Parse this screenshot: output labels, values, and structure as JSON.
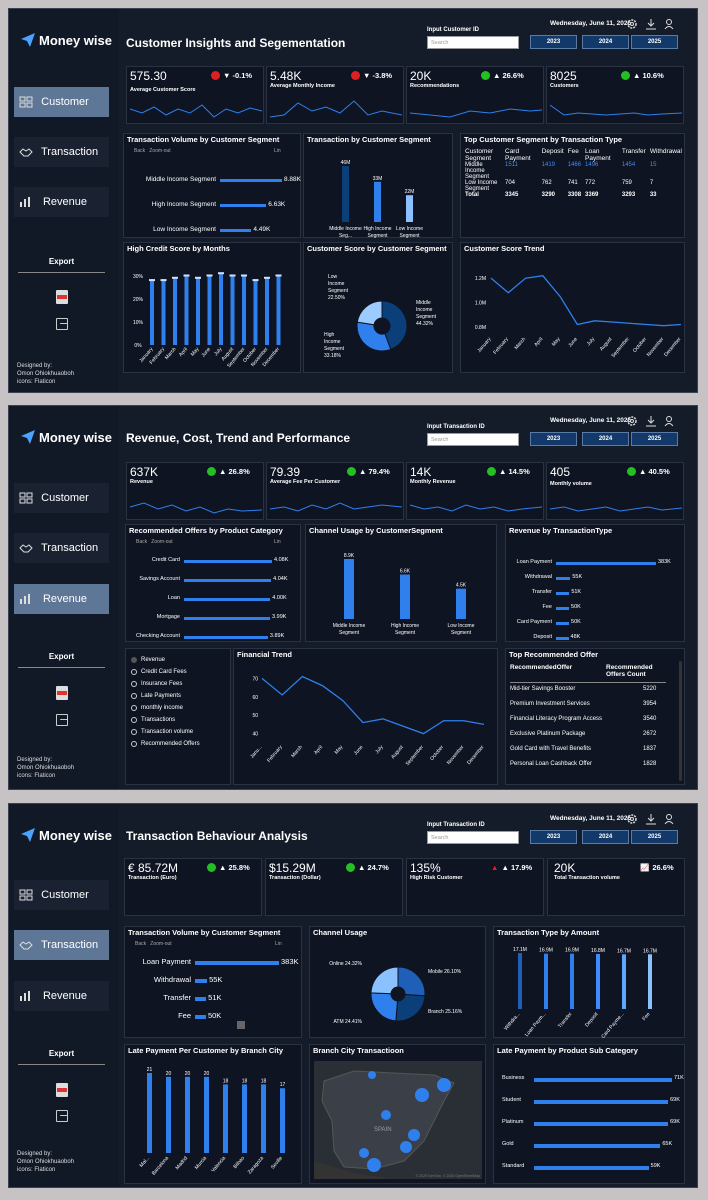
{
  "brand": "Money wise",
  "nav": {
    "customer": "Customer",
    "transaction": "Transaction",
    "revenue": "Revenue"
  },
  "export": "Export",
  "credit": {
    "l1": "Designed by:",
    "l2": "Omon Ohiokhuaoboh",
    "l3": "icons: Flaticon"
  },
  "date": "Wednesday, June 11, 2025",
  "years": [
    "2023",
    "2024",
    "2025"
  ],
  "search_placeholder": "Search",
  "d1": {
    "title": "Customer Insights and Segementation",
    "input_label": "Input Customer ID",
    "kpis": [
      {
        "value": "575.30",
        "label": "Average Customer Score",
        "delta": "▼ -0.1%",
        "status": "#e02020"
      },
      {
        "value": "5.48K",
        "label": "Average Monthly Income",
        "delta": "▼ -3.8%",
        "status": "#e02020"
      },
      {
        "value": "20K",
        "label": "Recommendations",
        "delta": "▲ 26.6%",
        "status": "#22c022"
      },
      {
        "value": "8025",
        "label": "Customers",
        "delta": "▲ 10.6%",
        "status": "#22c022"
      }
    ],
    "tv": {
      "title": "Transaction Volume by Customer Segment",
      "back": "Back",
      "zoom": "Zoom-out",
      "lin": "Lin",
      "rows": [
        {
          "label": "Middle Income Segment",
          "value": "8.88K",
          "v": 8.88
        },
        {
          "label": "High Income Segment",
          "value": "6.63K",
          "v": 6.63
        },
        {
          "label": "Low Income Segment",
          "value": "4.49K",
          "v": 4.49
        }
      ]
    },
    "tbs": {
      "title": "Transaction by Customer Segment",
      "bars": [
        {
          "label": "Middle Income Seg...",
          "value": "46M",
          "v": 46
        },
        {
          "label": "High Income Segment",
          "value": "33M",
          "v": 33
        },
        {
          "label": "Low Income Segment",
          "value": "22M",
          "v": 22
        }
      ]
    },
    "top": {
      "title": "Top Customer Segment by Transaction Type",
      "headers": [
        "Customer Segment",
        "Card Payment",
        "Deposit",
        "Fee",
        "Loan Payment",
        "Transfer",
        "Withdrawal"
      ],
      "rows": [
        [
          "Middle Income Segment",
          "1511",
          "1419",
          "1466",
          "1496",
          "1454",
          "15"
        ],
        [
          "Low Income Segment",
          "704",
          "762",
          "741",
          "772",
          "759",
          "7"
        ],
        [
          "Total",
          "3345",
          "3290",
          "3308",
          "3369",
          "3293",
          "33"
        ]
      ]
    },
    "credit": {
      "title": "High Credit Score by Months",
      "yticks": [
        "30%",
        "20%",
        "10%",
        "0%"
      ],
      "months": [
        "January",
        "February",
        "March",
        "April",
        "May",
        "June",
        "July",
        "August",
        "September",
        "October",
        "November",
        "December"
      ],
      "values": [
        28,
        28,
        29,
        30,
        29,
        30,
        31,
        30,
        30,
        28,
        29,
        30
      ]
    },
    "score": {
      "title": "Customer Score by Customer Segment",
      "slices": [
        {
          "label": "Middle Income Segment",
          "pct": "44.32%",
          "v": 44.32,
          "color": "#0b3f7a"
        },
        {
          "label": "High Income Segment",
          "pct": "33.18%",
          "v": 33.18,
          "color": "#2f80ed"
        },
        {
          "label": "Low Income Segment",
          "pct": "22.50%",
          "v": 22.5,
          "color": "#9ecbff"
        }
      ]
    },
    "trend": {
      "title": "Customer Score Trend",
      "yticks": [
        "1.2M",
        "1.0M",
        "0.8M"
      ],
      "months": [
        "January",
        "February",
        "March",
        "April",
        "May",
        "June",
        "July",
        "August",
        "September",
        "October",
        "November",
        "December"
      ],
      "values": [
        1.2,
        1.08,
        1.2,
        1.22,
        1.05,
        0.82,
        0.85,
        0.84,
        0.83,
        0.82,
        0.81,
        0.82
      ]
    }
  },
  "d2": {
    "title": "Revenue, Cost, Trend and Performance",
    "input_label": "Input Transaction ID",
    "kpis": [
      {
        "value": "637K",
        "label": "Revenue",
        "delta": "▲ 26.8%",
        "status": "#22c022"
      },
      {
        "value": "79.39",
        "label": "Average Fee Per Customer",
        "delta": "▲ 79.4%",
        "status": "#22c022"
      },
      {
        "value": "14K",
        "label": "Monthly Revenue",
        "delta": "▲ 14.5%",
        "status": "#22c022"
      },
      {
        "value": "405",
        "label": "Monthly volume",
        "delta": "▲ 40.5%",
        "status": "#22c022"
      }
    ],
    "offers": {
      "title": "Recommended Offers by Product Category",
      "back": "Back",
      "zoom": "Zoom-out",
      "lin": "Lin",
      "rows": [
        {
          "label": "Credit Card",
          "value": "4.08K",
          "v": 4.08
        },
        {
          "label": "Savings Account",
          "value": "4.04K",
          "v": 4.04
        },
        {
          "label": "Loan",
          "value": "4.00K",
          "v": 4.0
        },
        {
          "label": "Mortgage",
          "value": "3.99K",
          "v": 3.99
        },
        {
          "label": "Checking Account",
          "value": "3.89K",
          "v": 3.89
        }
      ]
    },
    "channel": {
      "title": "Channel Usage by CustomerSegment",
      "bars": [
        {
          "label": "Middle Income Segment",
          "value": "8.9K",
          "v": 8.9
        },
        {
          "label": "High Income Segment",
          "value": "6.6K",
          "v": 6.6
        },
        {
          "label": "Low Income Segment",
          "value": "4.5K",
          "v": 4.5
        }
      ]
    },
    "rev": {
      "title": "Revenue by TransactionType",
      "rows": [
        {
          "label": "Loan Payment",
          "value": "383K",
          "v": 383
        },
        {
          "label": "Withdrawal",
          "value": "55K",
          "v": 55
        },
        {
          "label": "Transfer",
          "value": "51K",
          "v": 51
        },
        {
          "label": "Fee",
          "value": "50K",
          "v": 50
        },
        {
          "label": "Card Payment",
          "value": "50K",
          "v": 50
        },
        {
          "label": "Deposit",
          "value": "48K",
          "v": 48
        }
      ]
    },
    "legend": [
      "Revenue",
      "Credit Card Fees",
      "Insurance Fees",
      "Late Payments",
      "monthly income",
      "Transactions",
      "Transaction volume",
      "Recommended Offers"
    ],
    "fin": {
      "title": "Financial Trend",
      "yticks": [
        "70",
        "60",
        "50",
        "40"
      ],
      "months": [
        "Janu...",
        "February",
        "March",
        "April",
        "May",
        "June",
        "July",
        "August",
        "September",
        "October",
        "November",
        "December"
      ],
      "values": [
        70,
        61,
        71,
        66,
        58,
        46,
        48,
        44,
        40,
        47,
        47,
        45
      ]
    },
    "topoffer": {
      "title": "Top Recommended Offer",
      "h1": "RecommendedOffer",
      "h2": "Recommended Offers Count",
      "rows": [
        [
          "Mid-tier Savings Booster",
          "5220"
        ],
        [
          "Premium Investment Services",
          "3954"
        ],
        [
          "Financial Literacy Program Access",
          "3540"
        ],
        [
          "Exclusive Platinum Package",
          "2672"
        ],
        [
          "Gold Card with Travel Benefits",
          "1837"
        ],
        [
          "Personal Loan Cashback Offer",
          "1828"
        ]
      ]
    }
  },
  "d3": {
    "title": "Transaction Behaviour Analysis",
    "input_label": "Input Transaction ID",
    "kpis": [
      {
        "value": "€ 85.72M",
        "label": "Transaction (Euro)",
        "delta": "▲ 25.8%",
        "status": "#22c022"
      },
      {
        "value": "$15.29M",
        "label": "Transaction (Dollar)",
        "delta": "▲ 24.7%",
        "status": "#22c022"
      },
      {
        "value": "135%",
        "label": "High Risk Customer",
        "delta": "▲ 17.9%",
        "status": "#e02020"
      },
      {
        "value": "20K",
        "label": "Total Transaction volume",
        "delta": "26.6%",
        "status": "#dddddd"
      }
    ],
    "tv": {
      "title": "Transaction Volume by Customer Segment",
      "back": "Back",
      "zoom": "Zoom-out",
      "lin": "Lin",
      "rows": [
        {
          "label": "Loan Payment",
          "value": "383K",
          "v": 383
        },
        {
          "label": "Withdrawal",
          "value": "55K",
          "v": 55
        },
        {
          "label": "Transfer",
          "value": "51K",
          "v": 51
        },
        {
          "label": "Fee",
          "value": "50K",
          "v": 50
        }
      ]
    },
    "chan": {
      "title": "Channel Usage",
      "slices": [
        {
          "label": "Mobile",
          "pct": "26.10%",
          "v": 26.1,
          "color": "#1f5fb8"
        },
        {
          "label": "Branch",
          "pct": "25.16%",
          "v": 25.16,
          "color": "#0b3f7a"
        },
        {
          "label": "ATM",
          "pct": "24.41%",
          "v": 24.41,
          "color": "#2f80ed"
        },
        {
          "label": "Online",
          "pct": "24.32%",
          "v": 24.32,
          "color": "#8bc1ff"
        }
      ]
    },
    "ttype": {
      "title": "Transaction Type by Amount",
      "bars": [
        {
          "label": "Withdra...",
          "value": "17.1M",
          "v": 17.1
        },
        {
          "label": "Loan Paym...",
          "value": "16.9M",
          "v": 16.9
        },
        {
          "label": "Transfer",
          "value": "16.9M",
          "v": 16.9
        },
        {
          "label": "Deposit",
          "value": "16.8M",
          "v": 16.8
        },
        {
          "label": "Card Payme...",
          "value": "16.7M",
          "v": 16.7
        },
        {
          "label": "Fee",
          "value": "16.7M",
          "v": 16.7
        }
      ]
    },
    "late": {
      "title": "Late Payment Per Customer by Branch City",
      "bars": [
        {
          "label": "Mal...",
          "value": "21",
          "v": 21
        },
        {
          "label": "Barcelona",
          "value": "20",
          "v": 20
        },
        {
          "label": "Madrid",
          "value": "20",
          "v": 20
        },
        {
          "label": "Murcia",
          "value": "20",
          "v": 20
        },
        {
          "label": "Valencia",
          "value": "18",
          "v": 18
        },
        {
          "label": "Bilbao",
          "value": "18",
          "v": 18
        },
        {
          "label": "Zaragoza",
          "value": "18",
          "v": 18
        },
        {
          "label": "Seville",
          "value": "17",
          "v": 17
        }
      ]
    },
    "map": {
      "title": "Branch City Transactioon",
      "country": "SPAIN",
      "attrib": "© 2025 TomTom, © 2025 OpenStreetMap"
    },
    "sub": {
      "title": "Late Payment by Product Sub Category",
      "rows": [
        {
          "label": "Business",
          "value": "71K",
          "v": 71
        },
        {
          "label": "Student",
          "value": "69K",
          "v": 69
        },
        {
          "label": "Platinum",
          "value": "69K",
          "v": 69
        },
        {
          "label": "Gold",
          "value": "65K",
          "v": 65
        },
        {
          "label": "Standard",
          "value": "59K",
          "v": 59
        }
      ]
    }
  }
}
